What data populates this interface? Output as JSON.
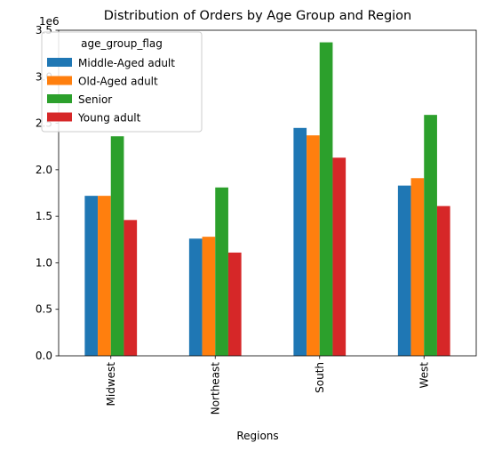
{
  "chart_data": {
    "type": "bar",
    "title": "Distribution of Orders by Age Group and Region",
    "xlabel": "Regions",
    "ylabel": "",
    "y_scale_label": "1e6",
    "categories": [
      "Midwest",
      "Northeast",
      "South",
      "West"
    ],
    "yticks": [
      "0.0",
      "0.5",
      "1.0",
      "1.5",
      "2.0",
      "2.5",
      "3.0",
      "3.5"
    ],
    "ylim": [
      0,
      3500000
    ],
    "legend": {
      "title": "age_group_flag",
      "position": "top-left"
    },
    "series": [
      {
        "name": "Middle-Aged adult",
        "color": "#1f77b4",
        "values": [
          1720000,
          1260000,
          2450000,
          1830000
        ]
      },
      {
        "name": "Old-Aged adult",
        "color": "#ff7f0e",
        "values": [
          1720000,
          1280000,
          2370000,
          1910000
        ]
      },
      {
        "name": "Senior",
        "color": "#2ca02c",
        "values": [
          2360000,
          1810000,
          3370000,
          2590000
        ]
      },
      {
        "name": "Young adult",
        "color": "#d62728",
        "values": [
          1460000,
          1110000,
          2130000,
          1610000
        ]
      }
    ],
    "grid": false
  }
}
